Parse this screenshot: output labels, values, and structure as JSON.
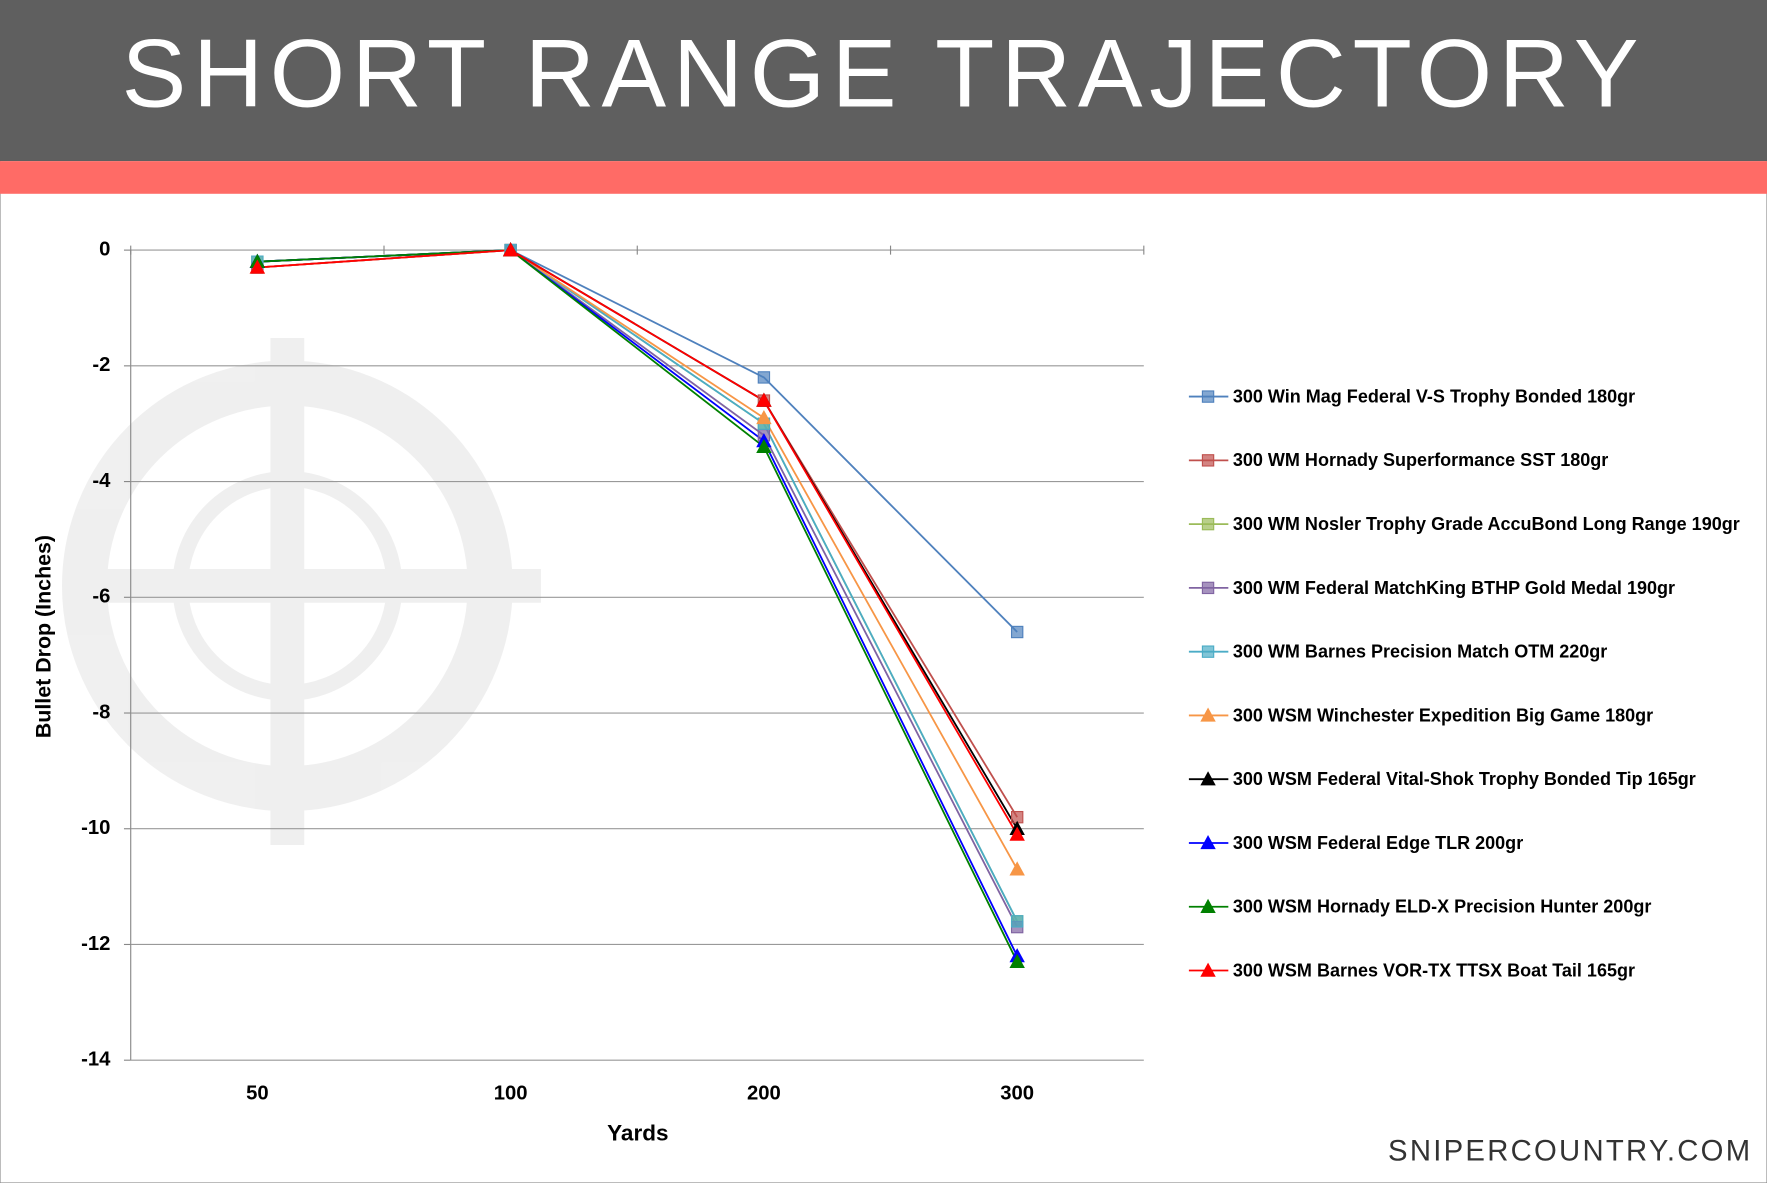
{
  "chart_data": {
    "type": "line",
    "title": "SHORT RANGE TRAJECTORY",
    "x_label": "Yards",
    "y_label": "Bullet Drop (Inches)",
    "footer": "SNIPERCOUNTRY.COM",
    "categories": [
      "50",
      "100",
      "200",
      "300"
    ],
    "ylim": [
      -14,
      0
    ],
    "yticks": [
      0,
      -2,
      -4,
      -6,
      -8,
      -10,
      -12,
      -14
    ],
    "grid": true,
    "legend": "right",
    "series": [
      {
        "name": "300 Win Mag Federal V-S Trophy Bonded 180gr",
        "color": "#4f81bd",
        "marker": "square",
        "values": [
          -0.3,
          0,
          -2.2,
          -6.6
        ]
      },
      {
        "name": "300 WM Hornady Superformance SST 180gr",
        "color": "#c0504d",
        "marker": "square",
        "values": [
          -0.3,
          0,
          -2.6,
          -9.8
        ]
      },
      {
        "name": "300 WM Nosler Trophy Grade AccuBond Long Range 190gr",
        "color": "#9bbb59",
        "marker": "square",
        "values": [
          -0.2,
          0,
          -3.0,
          -11.6
        ]
      },
      {
        "name": "300 WM Federal MatchKing BTHP Gold Medal 190gr",
        "color": "#8064a2",
        "marker": "square",
        "values": [
          -0.3,
          0,
          -3.2,
          -11.7
        ]
      },
      {
        "name": "300 WM Barnes Precision Match OTM 220gr",
        "color": "#4bacc6",
        "marker": "square",
        "values": [
          -0.2,
          0,
          -3.0,
          -11.6
        ]
      },
      {
        "name": "300 WSM Winchester Expedition Big Game 180gr",
        "color": "#f79646",
        "marker": "triangle",
        "values": [
          -0.3,
          0,
          -2.9,
          -10.7
        ]
      },
      {
        "name": "300 WSM Federal Vital-Shok Trophy Bonded Tip 165gr",
        "color": "#000000",
        "marker": "triangle",
        "values": [
          -0.2,
          0,
          -2.6,
          -10.0
        ]
      },
      {
        "name": "300 WSM Federal Edge TLR 200gr",
        "color": "#0000ff",
        "marker": "triangle",
        "values": [
          -0.2,
          0,
          -3.3,
          -12.2
        ]
      },
      {
        "name": "300 WSM Hornady ELD-X Precision Hunter 200gr",
        "color": "#008000",
        "marker": "triangle",
        "values": [
          -0.2,
          0,
          -3.4,
          -12.3
        ]
      },
      {
        "name": "300 WSM Barnes VOR-TX TTSX Boat Tail 165gr",
        "color": "#ff0000",
        "marker": "triangle",
        "values": [
          -0.3,
          0,
          -2.6,
          -10.1
        ]
      }
    ]
  }
}
